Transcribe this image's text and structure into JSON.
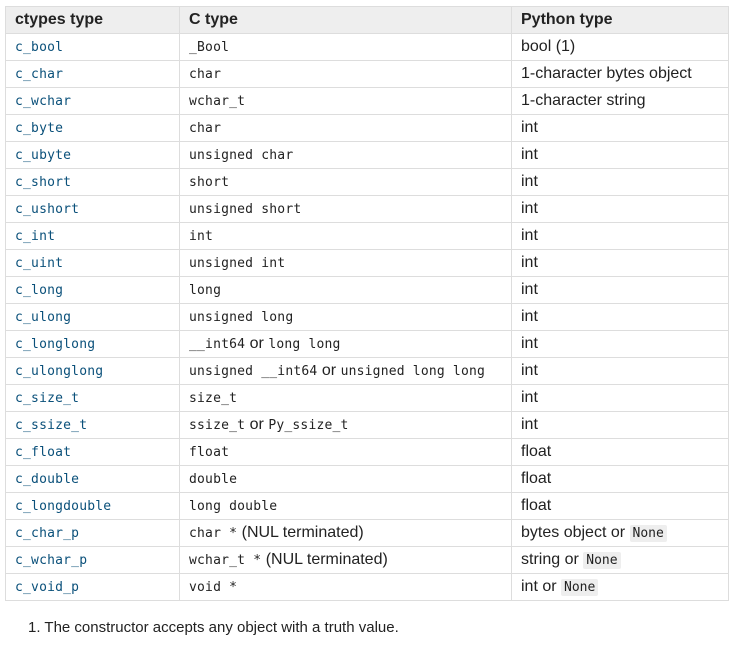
{
  "headers": {
    "ctypes": "ctypes type",
    "c": "C type",
    "python": "Python type"
  },
  "rows": [
    {
      "ctypes": "c_bool",
      "c": [
        {
          "t": "code",
          "v": "_Bool"
        }
      ],
      "py": [
        {
          "t": "text",
          "v": "bool (1)"
        }
      ]
    },
    {
      "ctypes": "c_char",
      "c": [
        {
          "t": "code",
          "v": "char"
        }
      ],
      "py": [
        {
          "t": "text",
          "v": "1-character bytes object"
        }
      ]
    },
    {
      "ctypes": "c_wchar",
      "c": [
        {
          "t": "code",
          "v": "wchar_t"
        }
      ],
      "py": [
        {
          "t": "text",
          "v": "1-character string"
        }
      ]
    },
    {
      "ctypes": "c_byte",
      "c": [
        {
          "t": "code",
          "v": "char"
        }
      ],
      "py": [
        {
          "t": "text",
          "v": "int"
        }
      ]
    },
    {
      "ctypes": "c_ubyte",
      "c": [
        {
          "t": "code",
          "v": "unsigned char"
        }
      ],
      "py": [
        {
          "t": "text",
          "v": "int"
        }
      ]
    },
    {
      "ctypes": "c_short",
      "c": [
        {
          "t": "code",
          "v": "short"
        }
      ],
      "py": [
        {
          "t": "text",
          "v": "int"
        }
      ]
    },
    {
      "ctypes": "c_ushort",
      "c": [
        {
          "t": "code",
          "v": "unsigned short"
        }
      ],
      "py": [
        {
          "t": "text",
          "v": "int"
        }
      ]
    },
    {
      "ctypes": "c_int",
      "c": [
        {
          "t": "code",
          "v": "int"
        }
      ],
      "py": [
        {
          "t": "text",
          "v": "int"
        }
      ]
    },
    {
      "ctypes": "c_uint",
      "c": [
        {
          "t": "code",
          "v": "unsigned int"
        }
      ],
      "py": [
        {
          "t": "text",
          "v": "int"
        }
      ]
    },
    {
      "ctypes": "c_long",
      "c": [
        {
          "t": "code",
          "v": "long"
        }
      ],
      "py": [
        {
          "t": "text",
          "v": "int"
        }
      ]
    },
    {
      "ctypes": "c_ulong",
      "c": [
        {
          "t": "code",
          "v": "unsigned long"
        }
      ],
      "py": [
        {
          "t": "text",
          "v": "int"
        }
      ]
    },
    {
      "ctypes": "c_longlong",
      "c": [
        {
          "t": "code",
          "v": "__int64"
        },
        {
          "t": "sep",
          "v": " or "
        },
        {
          "t": "code",
          "v": "long long"
        }
      ],
      "py": [
        {
          "t": "text",
          "v": "int"
        }
      ]
    },
    {
      "ctypes": "c_ulonglong",
      "c": [
        {
          "t": "code",
          "v": "unsigned __int64"
        },
        {
          "t": "sep",
          "v": " or "
        },
        {
          "t": "code",
          "v": "unsigned long long"
        }
      ],
      "py": [
        {
          "t": "text",
          "v": "int"
        }
      ]
    },
    {
      "ctypes": "c_size_t",
      "c": [
        {
          "t": "code",
          "v": "size_t"
        }
      ],
      "py": [
        {
          "t": "text",
          "v": "int"
        }
      ]
    },
    {
      "ctypes": "c_ssize_t",
      "c": [
        {
          "t": "code",
          "v": "ssize_t"
        },
        {
          "t": "sep",
          "v": " or "
        },
        {
          "t": "code",
          "v": "Py_ssize_t"
        }
      ],
      "py": [
        {
          "t": "text",
          "v": "int"
        }
      ]
    },
    {
      "ctypes": "c_float",
      "c": [
        {
          "t": "code",
          "v": "float"
        }
      ],
      "py": [
        {
          "t": "text",
          "v": "float"
        }
      ]
    },
    {
      "ctypes": "c_double",
      "c": [
        {
          "t": "code",
          "v": "double"
        }
      ],
      "py": [
        {
          "t": "text",
          "v": "float"
        }
      ]
    },
    {
      "ctypes": "c_longdouble",
      "c": [
        {
          "t": "code",
          "v": "long double"
        }
      ],
      "py": [
        {
          "t": "text",
          "v": "float"
        }
      ]
    },
    {
      "ctypes": "c_char_p",
      "c": [
        {
          "t": "code",
          "v": "char *"
        },
        {
          "t": "sep",
          "v": " (NUL terminated)"
        }
      ],
      "py": [
        {
          "t": "text",
          "v": "bytes object or "
        },
        {
          "t": "pre",
          "v": "None"
        }
      ]
    },
    {
      "ctypes": "c_wchar_p",
      "c": [
        {
          "t": "code",
          "v": "wchar_t *"
        },
        {
          "t": "sep",
          "v": " (NUL terminated)"
        }
      ],
      "py": [
        {
          "t": "text",
          "v": "string or "
        },
        {
          "t": "pre",
          "v": "None"
        }
      ]
    },
    {
      "ctypes": "c_void_p",
      "c": [
        {
          "t": "code",
          "v": "void *"
        }
      ],
      "py": [
        {
          "t": "text",
          "v": "int or "
        },
        {
          "t": "pre",
          "v": "None"
        }
      ]
    }
  ],
  "footnote": "1. The constructor accepts any object with a truth value."
}
